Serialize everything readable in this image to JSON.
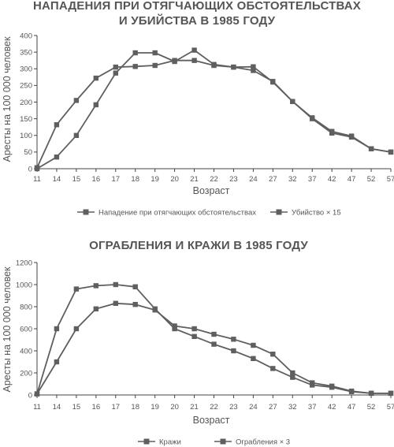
{
  "colors": {
    "series": "#5f5f5f",
    "axis": "#444444",
    "text": "#555555"
  },
  "chart_data": [
    {
      "type": "line",
      "title_lines": [
        "НАПАДЕНИЯ ПРИ ОТЯГЧАЮЩИХ ОБСТОЯТЕЛЬСТВАХ",
        "И УБИЙСТВА В 1985 ГОДУ"
      ],
      "xlabel": "Возраст",
      "ylabel": "Аресты на 100 000 человек",
      "ylim": [
        0,
        400
      ],
      "yticks": [
        0,
        50,
        100,
        150,
        200,
        250,
        300,
        350,
        400
      ],
      "categories": [
        "11",
        "14",
        "15",
        "16",
        "17",
        "18",
        "19",
        "20",
        "21",
        "22",
        "23",
        "24",
        "27",
        "32",
        "37",
        "42",
        "47",
        "52",
        "57"
      ],
      "series": [
        {
          "name": "Нападение при отягчающих обстоятельствах",
          "values": [
            3,
            132,
            205,
            272,
            305,
            307,
            310,
            325,
            325,
            310,
            305,
            295,
            262,
            202,
            150,
            107,
            95,
            60,
            50
          ]
        },
        {
          "name": "Убийство × 15",
          "values": [
            0,
            35,
            100,
            192,
            287,
            348,
            348,
            322,
            356,
            313,
            305,
            306,
            260,
            202,
            153,
            112,
            98,
            60,
            50
          ]
        }
      ],
      "legend_position": "bottom"
    },
    {
      "type": "line",
      "title_lines": [
        "ОГРАБЛЕНИЯ И КРАЖИ В 1985 ГОДУ"
      ],
      "xlabel": "Возраст",
      "ylabel": "Аресты на 100 000 человек",
      "ylim": [
        0,
        1200
      ],
      "yticks": [
        0,
        200,
        400,
        600,
        800,
        1000,
        1200
      ],
      "categories": [
        "11",
        "14",
        "15",
        "16",
        "17",
        "18",
        "19",
        "20",
        "21",
        "22",
        "23",
        "24",
        "27",
        "32",
        "37",
        "42",
        "47",
        "52",
        "57"
      ],
      "series": [
        {
          "name": "Кражи",
          "values": [
            10,
            600,
            960,
            990,
            1000,
            980,
            780,
            600,
            530,
            460,
            400,
            330,
            240,
            160,
            90,
            70,
            30,
            15,
            15
          ]
        },
        {
          "name": "Ограбления × 3",
          "values": [
            10,
            300,
            600,
            780,
            830,
            820,
            770,
            625,
            600,
            550,
            505,
            450,
            370,
            200,
            110,
            80,
            35,
            15,
            15
          ]
        }
      ],
      "legend_position": "bottom"
    }
  ]
}
